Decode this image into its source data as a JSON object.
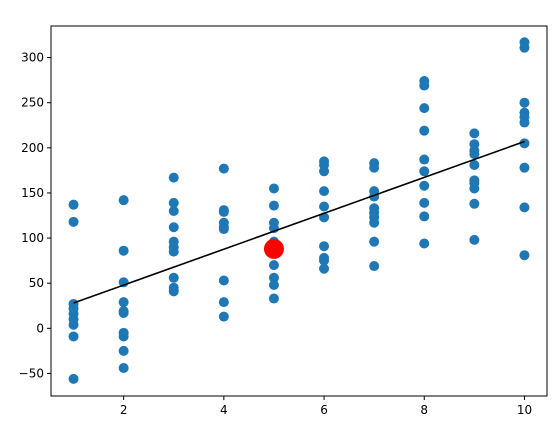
{
  "chart_data": {
    "type": "scatter",
    "title": "",
    "xlabel": "",
    "ylabel": "",
    "xlim": [
      0.55,
      10.45
    ],
    "ylim": [
      -75,
      335
    ],
    "xticks": [
      2,
      4,
      6,
      8,
      10
    ],
    "yticks": [
      -50,
      0,
      50,
      100,
      150,
      200,
      250,
      300
    ],
    "grid": false,
    "legend": "none",
    "colors": {
      "points": "#1f77b4",
      "highlight": "#ff0000",
      "fit_line": "#000000"
    },
    "points": [
      {
        "x": 1,
        "y": 137
      },
      {
        "x": 1,
        "y": 118
      },
      {
        "x": 1,
        "y": 27
      },
      {
        "x": 1,
        "y": 22
      },
      {
        "x": 1,
        "y": 16
      },
      {
        "x": 1,
        "y": 10
      },
      {
        "x": 1,
        "y": 4
      },
      {
        "x": 1,
        "y": -9
      },
      {
        "x": 1,
        "y": -56
      },
      {
        "x": 2,
        "y": 142
      },
      {
        "x": 2,
        "y": 86
      },
      {
        "x": 2,
        "y": 51
      },
      {
        "x": 2,
        "y": 29
      },
      {
        "x": 2,
        "y": 19
      },
      {
        "x": 2,
        "y": 17
      },
      {
        "x": 2,
        "y": -5
      },
      {
        "x": 2,
        "y": -9
      },
      {
        "x": 2,
        "y": -25
      },
      {
        "x": 2,
        "y": -44
      },
      {
        "x": 3,
        "y": 167
      },
      {
        "x": 3,
        "y": 139
      },
      {
        "x": 3,
        "y": 130
      },
      {
        "x": 3,
        "y": 112
      },
      {
        "x": 3,
        "y": 96
      },
      {
        "x": 3,
        "y": 90
      },
      {
        "x": 3,
        "y": 85
      },
      {
        "x": 3,
        "y": 56
      },
      {
        "x": 3,
        "y": 45
      },
      {
        "x": 3,
        "y": 41
      },
      {
        "x": 4,
        "y": 177
      },
      {
        "x": 4,
        "y": 131
      },
      {
        "x": 4,
        "y": 129
      },
      {
        "x": 4,
        "y": 117
      },
      {
        "x": 4,
        "y": 112
      },
      {
        "x": 4,
        "y": 110
      },
      {
        "x": 4,
        "y": 53
      },
      {
        "x": 4,
        "y": 29
      },
      {
        "x": 4,
        "y": 13
      },
      {
        "x": 5,
        "y": 155
      },
      {
        "x": 5,
        "y": 136
      },
      {
        "x": 5,
        "y": 117
      },
      {
        "x": 5,
        "y": 111
      },
      {
        "x": 5,
        "y": 96
      },
      {
        "x": 5,
        "y": 84
      },
      {
        "x": 5,
        "y": 70
      },
      {
        "x": 5,
        "y": 56
      },
      {
        "x": 5,
        "y": 48
      },
      {
        "x": 5,
        "y": 33
      },
      {
        "x": 6,
        "y": 185
      },
      {
        "x": 6,
        "y": 181
      },
      {
        "x": 6,
        "y": 174
      },
      {
        "x": 6,
        "y": 152
      },
      {
        "x": 6,
        "y": 135
      },
      {
        "x": 6,
        "y": 123
      },
      {
        "x": 6,
        "y": 91
      },
      {
        "x": 6,
        "y": 78
      },
      {
        "x": 6,
        "y": 75
      },
      {
        "x": 6,
        "y": 66
      },
      {
        "x": 7,
        "y": 183
      },
      {
        "x": 7,
        "y": 178
      },
      {
        "x": 7,
        "y": 152
      },
      {
        "x": 7,
        "y": 146
      },
      {
        "x": 7,
        "y": 133
      },
      {
        "x": 7,
        "y": 128
      },
      {
        "x": 7,
        "y": 123
      },
      {
        "x": 7,
        "y": 117
      },
      {
        "x": 7,
        "y": 96
      },
      {
        "x": 7,
        "y": 69
      },
      {
        "x": 8,
        "y": 274
      },
      {
        "x": 8,
        "y": 269
      },
      {
        "x": 8,
        "y": 244
      },
      {
        "x": 8,
        "y": 219
      },
      {
        "x": 8,
        "y": 187
      },
      {
        "x": 8,
        "y": 174
      },
      {
        "x": 8,
        "y": 158
      },
      {
        "x": 8,
        "y": 139
      },
      {
        "x": 8,
        "y": 124
      },
      {
        "x": 8,
        "y": 94
      },
      {
        "x": 9,
        "y": 216
      },
      {
        "x": 9,
        "y": 204
      },
      {
        "x": 9,
        "y": 197
      },
      {
        "x": 9,
        "y": 193
      },
      {
        "x": 9,
        "y": 181
      },
      {
        "x": 9,
        "y": 164
      },
      {
        "x": 9,
        "y": 161
      },
      {
        "x": 9,
        "y": 155
      },
      {
        "x": 9,
        "y": 138
      },
      {
        "x": 9,
        "y": 98
      },
      {
        "x": 10,
        "y": 317
      },
      {
        "x": 10,
        "y": 311
      },
      {
        "x": 10,
        "y": 250
      },
      {
        "x": 10,
        "y": 239
      },
      {
        "x": 10,
        "y": 234
      },
      {
        "x": 10,
        "y": 228
      },
      {
        "x": 10,
        "y": 205
      },
      {
        "x": 10,
        "y": 178
      },
      {
        "x": 10,
        "y": 134
      },
      {
        "x": 10,
        "y": 81
      }
    ],
    "highlight_point": {
      "x": 5,
      "y": 88
    },
    "fit_line": {
      "x": [
        1,
        10
      ],
      "y": [
        28,
        207
      ]
    }
  }
}
